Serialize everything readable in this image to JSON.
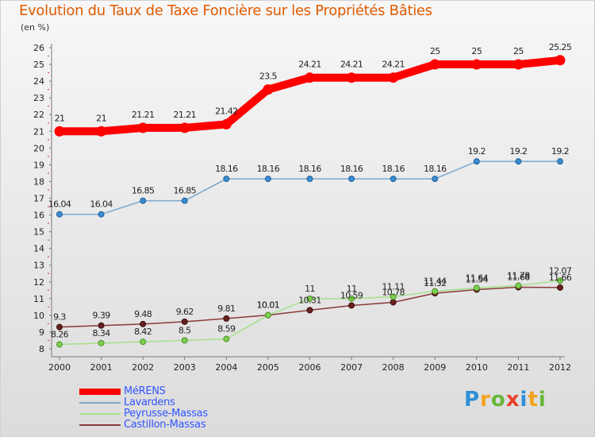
{
  "title": "Evolution du Taux de Taxe Foncière sur les Propriétés Bâties",
  "unit": "(en %)",
  "logo": {
    "letters": [
      {
        "ch": "P",
        "color": "#2d8fd8"
      },
      {
        "ch": "r",
        "color": "#f4a21d"
      },
      {
        "ch": "o",
        "color": "#66b83a"
      },
      {
        "ch": "x",
        "color": "#e8412b"
      },
      {
        "ch": "i",
        "color": "#2d8fd8"
      },
      {
        "ch": "t",
        "color": "#f4a21d"
      },
      {
        "ch": "i",
        "color": "#66b83a"
      }
    ]
  },
  "chart_data": {
    "type": "line",
    "x": [
      "2000",
      "2001",
      "2002",
      "2003",
      "2004",
      "2005",
      "2006",
      "2007",
      "2008",
      "2009",
      "2010",
      "2011",
      "2012"
    ],
    "ylim": [
      8,
      26
    ],
    "yticks": [
      8,
      9,
      10,
      11,
      12,
      13,
      14,
      15,
      16,
      17,
      18,
      19,
      20,
      21,
      22,
      23,
      24,
      25,
      26
    ],
    "grid": false,
    "legend_position": "bottom-left",
    "series": [
      {
        "name": "MéRENS",
        "color": "#ff0000",
        "marker": "#ff0000",
        "markerStroke": "#ff0000",
        "lineWidth": 10,
        "markerR": 6,
        "values": [
          21,
          21,
          21.21,
          21.21,
          21.42,
          23.5,
          24.21,
          24.21,
          24.21,
          25,
          25,
          25,
          25.25
        ],
        "labels": [
          "21",
          "21",
          "21.21",
          "21.21",
          "21.42",
          "23.5",
          "24.21",
          "24.21",
          "24.21",
          "25",
          "25",
          "25",
          "25.25"
        ]
      },
      {
        "name": "Lavardens",
        "color": "#7aa8cf",
        "marker": "#3a8ccf",
        "markerStroke": "#1f5f99",
        "lineWidth": 1.5,
        "markerR": 3.5,
        "values": [
          16.04,
          16.04,
          16.85,
          16.85,
          18.16,
          18.16,
          18.16,
          18.16,
          18.16,
          18.16,
          19.2,
          19.2,
          19.2
        ],
        "labels": [
          "16.04",
          "16.04",
          "16.85",
          "16.85",
          "18.16",
          "18.16",
          "18.16",
          "18.16",
          "18.16",
          "18.16",
          "19.2",
          "19.2",
          "19.2"
        ]
      },
      {
        "name": "Peyrusse-Massas",
        "color": "#a6e08a",
        "marker": "#7ccf4f",
        "markerStroke": "#4f8f2a",
        "lineWidth": 1.5,
        "markerR": 3.5,
        "values": [
          8.26,
          8.34,
          8.42,
          8.5,
          8.59,
          10.01,
          11,
          11,
          11.11,
          11.44,
          11.64,
          11.78,
          12.07
        ],
        "labels": [
          "8.26",
          "8.34",
          "8.42",
          "8.5",
          "8.59",
          "10.01",
          "11",
          "11",
          "11.11",
          "11.44",
          "11.64",
          "11.78",
          "12.07"
        ]
      },
      {
        "name": "Castillon-Massas",
        "color": "#8a3a3a",
        "marker": "#6a1f1f",
        "markerStroke": "#3a0f0f",
        "lineWidth": 1.5,
        "markerR": 3.5,
        "values": [
          9.3,
          9.39,
          9.48,
          9.62,
          9.81,
          10.01,
          10.31,
          10.59,
          10.78,
          11.32,
          11.54,
          11.68,
          11.66
        ],
        "labels": [
          "9.3",
          "9.39",
          "9.48",
          "9.62",
          "9.81",
          "10.01",
          "10.31",
          "10.59",
          "10.78",
          "11.32",
          "11.54",
          "11.68",
          "11.66"
        ]
      }
    ]
  }
}
